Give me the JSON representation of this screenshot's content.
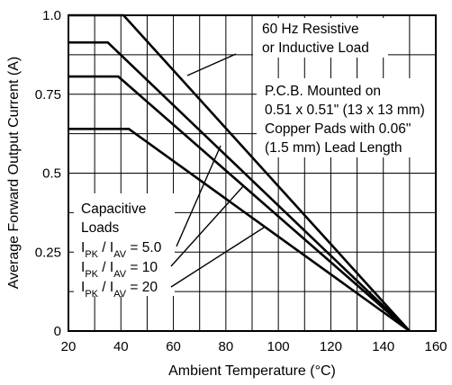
{
  "chart_data": {
    "type": "line",
    "title": "",
    "xlabel": "Ambient Temperature (°C)",
    "ylabel": "Average Forward Output Current (A)",
    "xlim": [
      20,
      160
    ],
    "ylim": [
      0,
      1.0
    ],
    "x_ticks": [
      20,
      40,
      60,
      80,
      100,
      120,
      140,
      160
    ],
    "x_tick_labels": [
      "20",
      "40",
      "60",
      "80",
      "100",
      "120",
      "140",
      "160"
    ],
    "y_ticks": [
      0,
      0.25,
      0.5,
      0.75,
      1.0
    ],
    "y_tick_labels": [
      "0",
      "0.25",
      "0.5",
      "0.75",
      "1.0"
    ],
    "grid": true,
    "grid_minor": {
      "x_step": 10,
      "y_step": 0.125
    },
    "series": [
      {
        "x": [
          20,
          41,
          150
        ],
        "y": [
          1.0,
          1.0,
          0
        ]
      },
      {
        "x": [
          20,
          35,
          150
        ],
        "y": [
          0.914,
          0.914,
          0
        ]
      },
      {
        "x": [
          20,
          39,
          150
        ],
        "y": [
          0.806,
          0.806,
          0
        ]
      },
      {
        "x": [
          20,
          43,
          150
        ],
        "y": [
          0.64,
          0.64,
          0
        ]
      }
    ],
    "annotations": {
      "resistive": [
        "60 Hᴢ Resistive",
        "or Inductive Load"
      ],
      "pcb": [
        "P.C.B. Mounted on",
        "0.51 x 0.51\" (13 x 13 mm)",
        "Copper Pads with 0.06\"",
        "(1.5 mm) Lead Length"
      ],
      "capacitive": [
        "Capacitive",
        "Loads"
      ],
      "ratios": [
        {
          "pk": "PK",
          "av": "AV",
          "value": "= 5.0"
        },
        {
          "pk": "PK",
          "av": "AV",
          "value": "= 10"
        },
        {
          "pk": "PK",
          "av": "AV",
          "value": "= 20"
        }
      ]
    }
  }
}
